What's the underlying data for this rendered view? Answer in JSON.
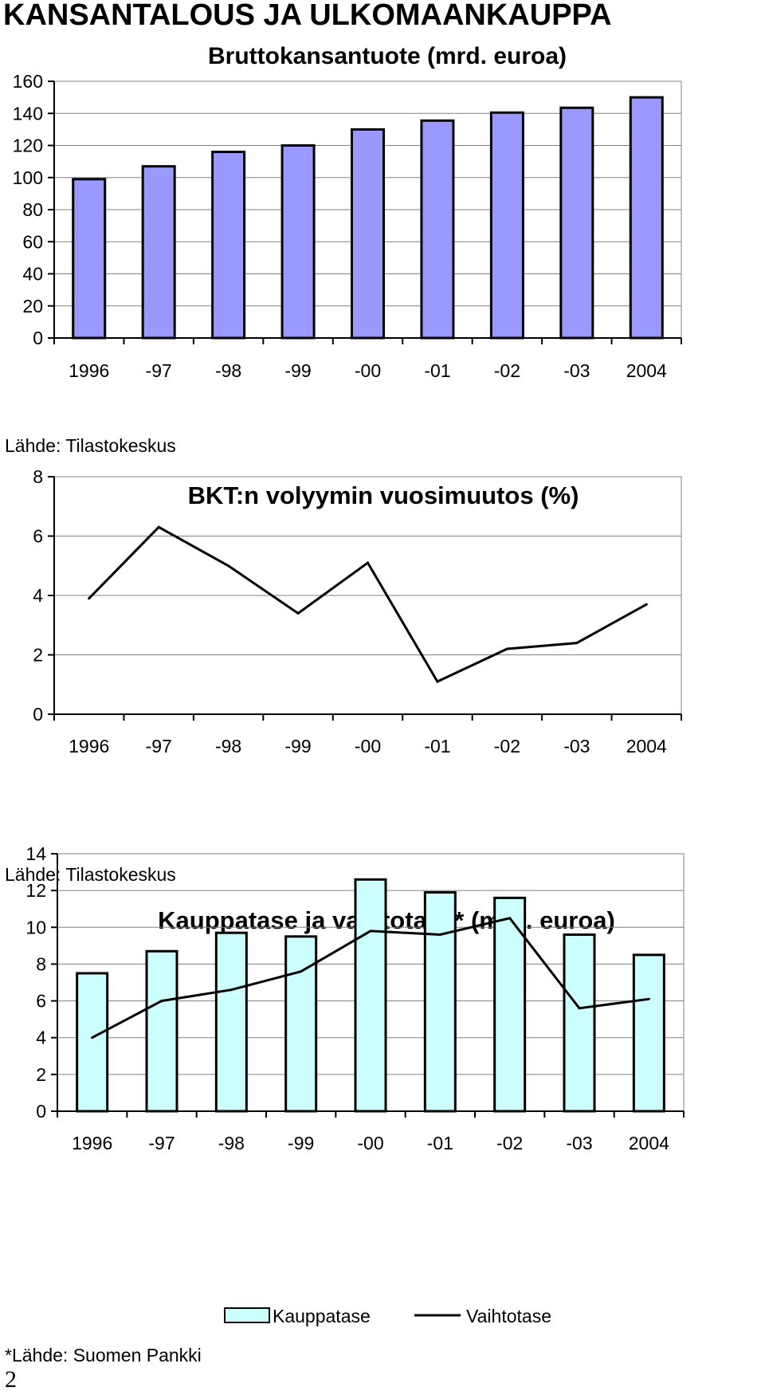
{
  "page": {
    "heading": "KANSANTALOUS JA ULKOMAANKAUPPA",
    "page_number": "2"
  },
  "chart_data": [
    {
      "type": "bar",
      "title": "Bruttokansantuote (mrd. euroa)",
      "categories": [
        "1996",
        "-97",
        "-98",
        "-99",
        "-00",
        "-01",
        "-02",
        "-03",
        "2004"
      ],
      "values": [
        99,
        107,
        116,
        120,
        130,
        135.5,
        140.5,
        143.5,
        150
      ],
      "ylim": [
        0,
        160
      ],
      "yticks": [
        0,
        20,
        40,
        60,
        80,
        100,
        120,
        140,
        160
      ],
      "grid": true,
      "bar_color": "#9999ff",
      "source": "Lähde: Tilastokeskus"
    },
    {
      "type": "line",
      "title": "BKT:n volyymin vuosimuutos (%)",
      "categories": [
        "1996",
        "-97",
        "-98",
        "-99",
        "-00",
        "-01",
        "-02",
        "-03",
        "2004"
      ],
      "values": [
        3.9,
        6.3,
        5.0,
        3.4,
        5.1,
        1.1,
        2.2,
        2.4,
        3.7
      ],
      "ylim": [
        0,
        8
      ],
      "yticks": [
        0,
        2,
        4,
        6,
        8
      ],
      "grid": true,
      "source": "Lähde: Tilastokeskus"
    },
    {
      "type": "bar",
      "title": "Kauppatase ja vaihtotase* (mrd. euroa)",
      "categories": [
        "1996",
        "-97",
        "-98",
        "-99",
        "-00",
        "-01",
        "-02",
        "-03",
        "2004"
      ],
      "series": [
        {
          "name": "Kauppatase",
          "type": "bar",
          "values": [
            7.5,
            8.7,
            9.7,
            9.5,
            12.6,
            11.9,
            11.6,
            9.6,
            8.5
          ],
          "color": "#ccffff"
        },
        {
          "name": "Vaihtotase",
          "type": "line",
          "values": [
            4.0,
            6.0,
            6.6,
            7.6,
            9.8,
            9.6,
            10.5,
            5.6,
            6.1
          ],
          "color": "#000000"
        }
      ],
      "ylim": [
        0,
        14
      ],
      "yticks": [
        0,
        2,
        4,
        6,
        8,
        10,
        12,
        14
      ],
      "grid": true,
      "legend": "bottom",
      "source": "*Lähde: Suomen Pankki"
    }
  ]
}
